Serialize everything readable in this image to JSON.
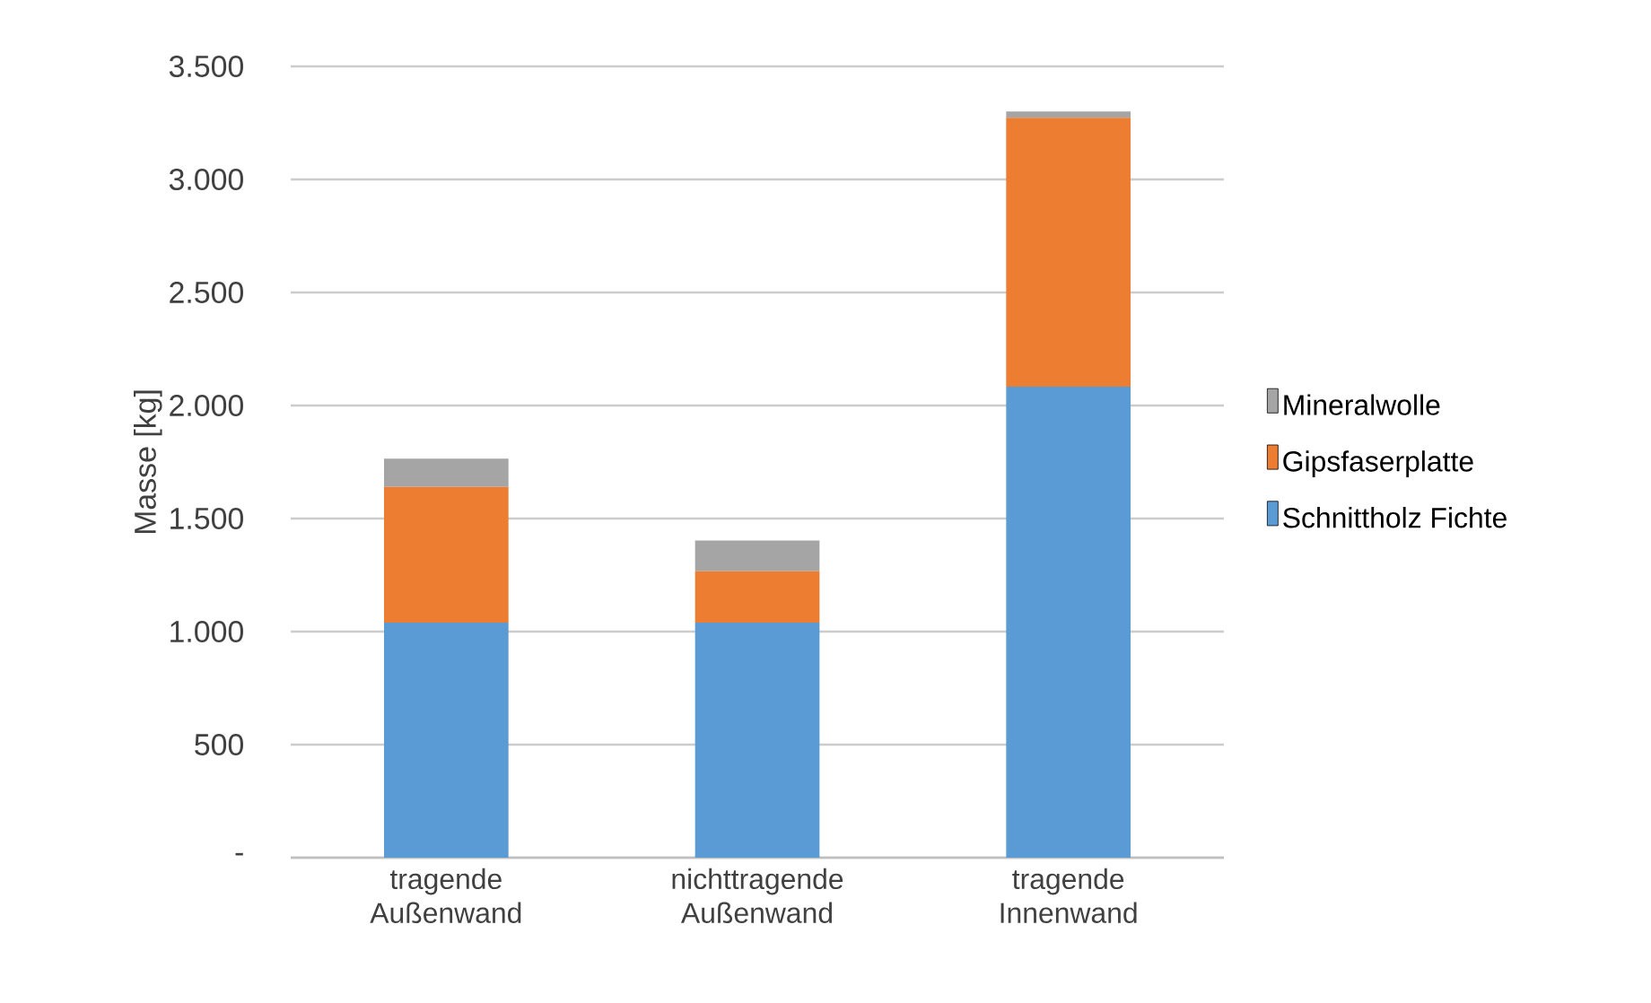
{
  "chart_data": {
    "type": "bar",
    "stacked": true,
    "ylabel": "Masse [kg]",
    "categories": [
      "tragende Außenwand",
      "nichttragende Außenwand",
      "tragende Innenwand"
    ],
    "series": [
      {
        "name": "Schnittholz Fichte",
        "color": "#5b9bd5",
        "values": [
          1040,
          1040,
          2083
        ]
      },
      {
        "name": "Gipsfaserplatte",
        "color": "#ed7d31",
        "values": [
          600,
          227,
          1190
        ]
      },
      {
        "name": "Mineralwolle",
        "color": "#a5a5a5",
        "values": [
          125,
          136,
          28
        ]
      }
    ],
    "ylim": [
      0,
      3500
    ],
    "yticks": [
      {
        "value": 0,
        "label": "-"
      },
      {
        "value": 500,
        "label": "500"
      },
      {
        "value": 1000,
        "label": "1.000"
      },
      {
        "value": 1500,
        "label": "1.500"
      },
      {
        "value": 2000,
        "label": "2.000"
      },
      {
        "value": 2500,
        "label": "2.500"
      },
      {
        "value": 3000,
        "label": "3.000"
      },
      {
        "value": 3500,
        "label": "3.500"
      }
    ],
    "grid": "y",
    "legend": "right"
  }
}
